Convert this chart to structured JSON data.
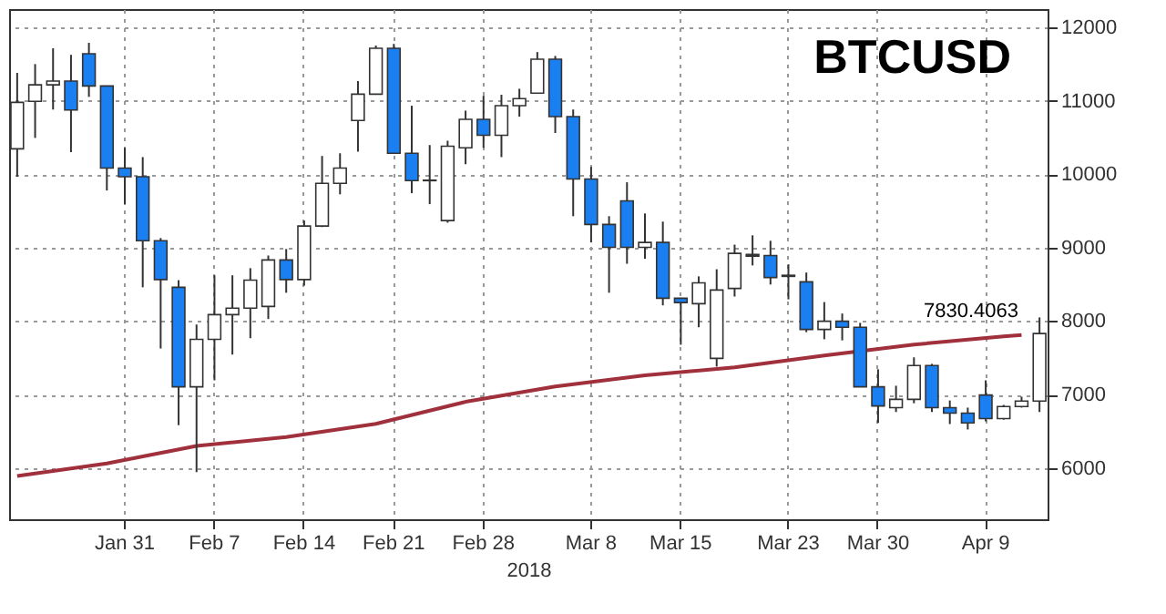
{
  "chart_data": {
    "type": "candlestick",
    "title": "BTCUSD",
    "xlabel": "2018",
    "categories": [
      null,
      null,
      null,
      null,
      null,
      null,
      "Jan 31",
      null,
      null,
      null,
      null,
      "Feb 7",
      null,
      null,
      null,
      null,
      "Feb 14",
      null,
      null,
      null,
      null,
      "Feb 21",
      null,
      null,
      null,
      null,
      "Feb 28",
      null,
      null,
      null,
      null,
      null,
      "Mar 8",
      null,
      null,
      null,
      null,
      "Mar 15",
      null,
      null,
      null,
      null,
      null,
      "Mar 23",
      null,
      null,
      null,
      null,
      "Mar 30",
      null,
      null,
      null,
      null,
      null,
      "Apr 9",
      null,
      null,
      null
    ],
    "ohlc": [
      [
        10346,
        11381,
        9966,
        10979
      ],
      [
        10994,
        11501,
        10495,
        11218
      ],
      [
        11218,
        11717,
        10882,
        11270
      ],
      [
        11270,
        11627,
        10301,
        10875
      ],
      [
        11642,
        11791,
        11054,
        11203
      ],
      [
        11203,
        11203,
        9779,
        10085
      ],
      [
        10085,
        10361,
        9593,
        9966
      ],
      [
        9966,
        10234,
        8460,
        9094
      ],
      [
        9094,
        9131,
        7626,
        8565
      ],
      [
        8460,
        8557,
        6582,
        7104
      ],
      [
        7104,
        7953,
        5942,
        7752
      ],
      [
        7752,
        8624,
        7193,
        8088
      ],
      [
        8088,
        8624,
        7544,
        8177
      ],
      [
        8177,
        8721,
        7767,
        8557
      ],
      [
        8199,
        8893,
        8028,
        8833
      ],
      [
        8833,
        8982,
        8386,
        8565
      ],
      [
        8565,
        9369,
        8483,
        9295
      ],
      [
        9295,
        10249,
        9280,
        9876
      ],
      [
        9876,
        10286,
        9727,
        10085
      ],
      [
        10733,
        11270,
        10308,
        11091
      ],
      [
        11091,
        11754,
        11083,
        11717
      ],
      [
        11717,
        11776,
        10286,
        10286
      ],
      [
        10286,
        10934,
        9742,
        9913
      ],
      [
        9920,
        10398,
        9593,
        9913
      ],
      [
        9369,
        10457,
        9340,
        10383
      ],
      [
        10361,
        10867,
        10137,
        10748
      ],
      [
        10748,
        11069,
        10361,
        10532
      ],
      [
        10532,
        11083,
        10234,
        10934
      ],
      [
        10934,
        11165,
        10785,
        11031
      ],
      [
        11106,
        11665,
        11106,
        11568
      ],
      [
        11568,
        11612,
        10562,
        10785
      ],
      [
        10785,
        10882,
        9429,
        9936
      ],
      [
        9936,
        10100,
        9071,
        9317
      ],
      [
        9317,
        9429,
        8386,
        9004
      ],
      [
        9638,
        9891,
        8781,
        9004
      ],
      [
        9004,
        9466,
        8848,
        9071
      ],
      [
        9071,
        9355,
        8214,
        8311
      ],
      [
        8311,
        8311,
        7678,
        8252
      ],
      [
        8237,
        8609,
        7916,
        8520
      ],
      [
        7492,
        8706,
        7380,
        8423
      ],
      [
        8445,
        9041,
        8334,
        8922
      ],
      [
        8907,
        9168,
        8758,
        8885
      ],
      [
        8893,
        9094,
        8498,
        8594
      ],
      [
        8624,
        8773,
        8296,
        8609
      ],
      [
        8535,
        8661,
        7849,
        7886
      ],
      [
        7886,
        8259,
        7752,
        7998
      ],
      [
        7998,
        8103,
        7737,
        7916
      ],
      [
        7916,
        7976,
        7104,
        7104
      ],
      [
        7104,
        7343,
        6612,
        6843
      ],
      [
        6821,
        7119,
        6761,
        6933
      ],
      [
        6933,
        7506,
        6880,
        7395
      ],
      [
        7395,
        7417,
        6761,
        6821
      ],
      [
        6821,
        6918,
        6597,
        6746
      ],
      [
        6746,
        6821,
        6523,
        6612
      ],
      [
        6992,
        7193,
        6634,
        6672
      ],
      [
        6672,
        6858,
        6657,
        6836
      ],
      [
        6836,
        6970,
        6821,
        6910
      ],
      [
        6910,
        8050,
        6761,
        7830
      ]
    ],
    "colors": [
      "#ffffff",
      "#ffffff",
      "#ffffff",
      "#1a7ff0",
      "#1a7ff0",
      "#1a7ff0",
      "#1a7ff0",
      "#1a7ff0",
      "#1a7ff0",
      "#1a7ff0",
      "#ffffff",
      "#ffffff",
      "#ffffff",
      "#ffffff",
      "#ffffff",
      "#1a7ff0",
      "#ffffff",
      "#ffffff",
      "#ffffff",
      "#ffffff",
      "#ffffff",
      "#1a7ff0",
      "#1a7ff0",
      "#1a7ff0",
      "#ffffff",
      "#ffffff",
      "#1a7ff0",
      "#ffffff",
      "#ffffff",
      "#ffffff",
      "#1a7ff0",
      "#1a7ff0",
      "#1a7ff0",
      "#1a7ff0",
      "#1a7ff0",
      "#ffffff",
      "#1a7ff0",
      "#1a7ff0",
      "#ffffff",
      "#ffffff",
      "#ffffff",
      "#1a7ff0",
      "#1a7ff0",
      "#1a7ff0",
      "#1a7ff0",
      "#ffffff",
      "#1a7ff0",
      "#1a7ff0",
      "#1a7ff0",
      "#ffffff",
      "#ffffff",
      "#1a7ff0",
      "#1a7ff0",
      "#1a7ff0",
      "#1a7ff0",
      "#ffffff",
      "#ffffff",
      "#ffffff"
    ],
    "series": [
      {
        "type": "line",
        "color": "#a0303c",
        "values": [
          5890,
          null,
          null,
          null,
          null,
          6060,
          null,
          null,
          null,
          null,
          6300,
          null,
          null,
          null,
          null,
          6420,
          null,
          null,
          null,
          null,
          6600,
          null,
          null,
          null,
          null,
          6900,
          null,
          null,
          null,
          null,
          7110,
          null,
          null,
          null,
          null,
          7260,
          null,
          null,
          null,
          null,
          7370,
          null,
          null,
          null,
          null,
          7530,
          null,
          null,
          null,
          null,
          7680,
          null,
          null,
          null,
          null,
          7790,
          7810,
          null
        ]
      }
    ],
    "ylim": [
      5300,
      12250
    ],
    "yticks": [
      6000,
      7000,
      8000,
      9000,
      10000,
      11000,
      12000
    ],
    "grid": true,
    "annotations": [
      {
        "text": "7830.4063",
        "y": 7830.4063
      }
    ]
  }
}
